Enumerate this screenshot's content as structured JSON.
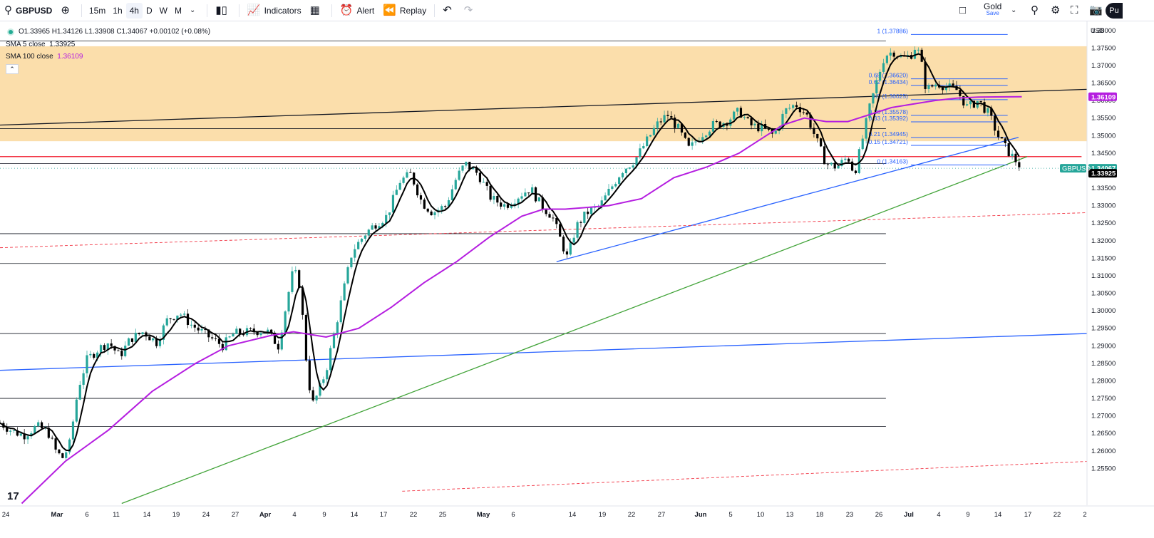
{
  "toolbar": {
    "symbol": "GBPUSD",
    "timeframes": [
      "15m",
      "1h",
      "4h",
      "D",
      "W",
      "M"
    ],
    "active_timeframe": "4h",
    "indicators": "Indicators",
    "alert": "Alert",
    "replay": "Replay",
    "layout_name": "Gold",
    "layout_status": "Save",
    "profile": "Pu"
  },
  "legend": {
    "ohlc": "O1.33965 H1.34126 L1.33908 C1.34067 +0.00102 (+0.08%)",
    "sma5_label": "SMA 5 close",
    "sma5_value": "1.33925",
    "sma100_label": "SMA 100 close",
    "sma100_value": "1.36109"
  },
  "currency": "USD",
  "colors": {
    "up": "#26a69a",
    "down": "#000000",
    "sma5": "#000000",
    "sma100": "#b51ee0",
    "zone": "#fbdeab",
    "fib": "#2962ff",
    "red_line": "#f23645",
    "green_trend": "#43a43a"
  },
  "chart_data": {
    "type": "candlestick",
    "symbol": "GBPUSD",
    "interval": "4h",
    "y_axis_ticks": [
      "1.38000",
      "1.37500",
      "1.37000",
      "1.36500",
      "1.36000",
      "1.35500",
      "1.35000",
      "1.34500",
      "1.34000",
      "1.33500",
      "1.33000",
      "1.32500",
      "1.32000",
      "1.31500",
      "1.31000",
      "1.30500",
      "1.30000",
      "1.29500",
      "1.29000",
      "1.28500",
      "1.28000",
      "1.27500",
      "1.27000",
      "1.26500",
      "1.26000",
      "1.25500"
    ],
    "x_axis_ticks": [
      "24",
      "Mar",
      "6",
      "11",
      "14",
      "19",
      "24",
      "27",
      "Apr",
      "4",
      "9",
      "14",
      "17",
      "22",
      "25",
      "May",
      "6",
      "14",
      "19",
      "22",
      "27",
      "Jun",
      "5",
      "10",
      "13",
      "18",
      "23",
      "26",
      "Jul",
      "4",
      "9",
      "14",
      "17",
      "22",
      "2"
    ],
    "ylim": [
      1.2445,
      1.3826
    ],
    "last_price": "1.34067",
    "last_price_label": "GBPUSD",
    "sma5_last": "1.33925",
    "sma100_last": "1.36109",
    "price_path": [
      [
        0,
        1.268
      ],
      [
        0.012,
        1.2655
      ],
      [
        0.022,
        1.2645
      ],
      [
        0.034,
        1.267
      ],
      [
        0.044,
        1.2655
      ],
      [
        0.052,
        1.2595
      ],
      [
        0.058,
        1.258
      ],
      [
        0.064,
        1.262
      ],
      [
        0.072,
        1.278
      ],
      [
        0.08,
        1.286
      ],
      [
        0.09,
        1.289
      ],
      [
        0.1,
        1.291
      ],
      [
        0.11,
        1.287
      ],
      [
        0.12,
        1.292
      ],
      [
        0.132,
        1.294
      ],
      [
        0.144,
        1.291
      ],
      [
        0.154,
        1.2975
      ],
      [
        0.165,
        1.2995
      ],
      [
        0.176,
        1.296
      ],
      [
        0.19,
        1.293
      ],
      [
        0.205,
        1.29
      ],
      [
        0.215,
        1.2935
      ],
      [
        0.23,
        1.294
      ],
      [
        0.245,
        1.2945
      ],
      [
        0.256,
        1.29
      ],
      [
        0.266,
        1.306
      ],
      [
        0.27,
        1.312
      ],
      [
        0.276,
        1.307
      ],
      [
        0.282,
        1.285
      ],
      [
        0.287,
        1.273
      ],
      [
        0.292,
        1.276
      ],
      [
        0.3,
        1.283
      ],
      [
        0.312,
        1.3
      ],
      [
        0.324,
        1.317
      ],
      [
        0.336,
        1.322
      ],
      [
        0.346,
        1.325
      ],
      [
        0.356,
        1.327
      ],
      [
        0.368,
        1.337
      ],
      [
        0.378,
        1.339
      ],
      [
        0.388,
        1.331
      ],
      [
        0.398,
        1.328
      ],
      [
        0.41,
        1.33
      ],
      [
        0.42,
        1.338
      ],
      [
        0.428,
        1.342
      ],
      [
        0.44,
        1.339
      ],
      [
        0.452,
        1.332
      ],
      [
        0.465,
        1.33
      ],
      [
        0.478,
        1.333
      ],
      [
        0.488,
        1.335
      ],
      [
        0.498,
        1.33
      ],
      [
        0.508,
        1.327
      ],
      [
        0.516,
        1.32
      ],
      [
        0.522,
        1.315
      ],
      [
        0.53,
        1.324
      ],
      [
        0.54,
        1.328
      ],
      [
        0.552,
        1.33
      ],
      [
        0.562,
        1.335
      ],
      [
        0.572,
        1.34
      ],
      [
        0.584,
        1.343
      ],
      [
        0.594,
        1.348
      ],
      [
        0.604,
        1.353
      ],
      [
        0.614,
        1.356
      ],
      [
        0.624,
        1.352
      ],
      [
        0.634,
        1.346
      ],
      [
        0.644,
        1.35
      ],
      [
        0.656,
        1.353
      ],
      [
        0.668,
        1.354
      ],
      [
        0.68,
        1.357
      ],
      [
        0.69,
        1.353
      ],
      [
        0.702,
        1.352
      ],
      [
        0.712,
        1.35
      ],
      [
        0.722,
        1.357
      ],
      [
        0.732,
        1.359
      ],
      [
        0.742,
        1.356
      ],
      [
        0.752,
        1.348
      ],
      [
        0.76,
        1.342
      ],
      [
        0.77,
        1.341
      ],
      [
        0.78,
        1.344
      ],
      [
        0.786,
        1.339
      ],
      [
        0.792,
        1.347
      ],
      [
        0.8,
        1.358
      ],
      [
        0.808,
        1.367
      ],
      [
        0.814,
        1.373
      ],
      [
        0.822,
        1.374
      ],
      [
        0.83,
        1.372
      ],
      [
        0.838,
        1.373
      ],
      [
        0.843,
        1.376
      ],
      [
        0.848,
        1.37
      ],
      [
        0.852,
        1.363
      ],
      [
        0.862,
        1.365
      ],
      [
        0.87,
        1.364
      ],
      [
        0.88,
        1.363
      ],
      [
        0.89,
        1.358
      ],
      [
        0.9,
        1.36
      ],
      [
        0.91,
        1.356
      ],
      [
        0.918,
        1.35
      ],
      [
        0.926,
        1.346
      ],
      [
        0.934,
        1.343
      ],
      [
        0.94,
        1.3407
      ]
    ],
    "sma100_path": [
      [
        0.02,
        1.245
      ],
      [
        0.06,
        1.257
      ],
      [
        0.1,
        1.266
      ],
      [
        0.14,
        1.277
      ],
      [
        0.18,
        1.285
      ],
      [
        0.21,
        1.29
      ],
      [
        0.25,
        1.293
      ],
      [
        0.27,
        1.294
      ],
      [
        0.3,
        1.2925
      ],
      [
        0.33,
        1.295
      ],
      [
        0.36,
        1.301
      ],
      [
        0.39,
        1.308
      ],
      [
        0.42,
        1.314
      ],
      [
        0.45,
        1.321
      ],
      [
        0.48,
        1.327
      ],
      [
        0.5,
        1.329
      ],
      [
        0.52,
        1.329
      ],
      [
        0.54,
        1.3295
      ],
      [
        0.56,
        1.33
      ],
      [
        0.59,
        1.332
      ],
      [
        0.62,
        1.338
      ],
      [
        0.65,
        1.341
      ],
      [
        0.68,
        1.345
      ],
      [
        0.7,
        1.349
      ],
      [
        0.72,
        1.353
      ],
      [
        0.74,
        1.355
      ],
      [
        0.76,
        1.354
      ],
      [
        0.78,
        1.354
      ],
      [
        0.8,
        1.356
      ],
      [
        0.82,
        1.358
      ],
      [
        0.84,
        1.359
      ],
      [
        0.86,
        1.36
      ],
      [
        0.88,
        1.3607
      ],
      [
        0.9,
        1.361
      ],
      [
        0.94,
        1.3611
      ]
    ],
    "horizontal_lines": [
      {
        "price": 1.377,
        "color": "#131722",
        "x_end": 0.815
      },
      {
        "price": 1.352,
        "color": "#131722",
        "x_end": 0.815
      },
      {
        "price": 1.344,
        "color": "#f23645",
        "x_end": 0.995
      },
      {
        "price": 1.342,
        "color": "#131722",
        "x_end": 0.815
      },
      {
        "price": 1.322,
        "color": "#131722",
        "x_end": 0.815
      },
      {
        "price": 1.3135,
        "color": "#131722",
        "x_end": 0.815
      },
      {
        "price": 1.2935,
        "color": "#131722",
        "x_end": 0.815
      },
      {
        "price": 1.275,
        "color": "#131722",
        "x_end": 0.815
      },
      {
        "price": 1.267,
        "color": "#131722",
        "x_end": 0.815
      }
    ],
    "zone": {
      "top": 1.3755,
      "bottom": 1.3484
    },
    "trend_lines": [
      {
        "from": [
          0,
          1.353
        ],
        "to": [
          1.0,
          1.3632
        ],
        "color": "#131722"
      },
      {
        "from": [
          0,
          1.283
        ],
        "to": [
          1.0,
          1.2935
        ],
        "color": "#2962ff"
      },
      {
        "from": [
          0.512,
          1.314
        ],
        "to": [
          0.937,
          1.3495
        ],
        "color": "#2962ff"
      },
      {
        "from": [
          0.112,
          1.245
        ],
        "to": [
          0.945,
          1.344
        ],
        "color": "#43a43a"
      },
      {
        "from": [
          0,
          1.318
        ],
        "to": [
          1.0,
          1.328
        ],
        "color": "#f23645",
        "dashed": true
      },
      {
        "from": [
          0.37,
          1.2485
        ],
        "to": [
          1.0,
          1.257
        ],
        "color": "#f23645",
        "dashed": true
      }
    ],
    "fibonacci": {
      "x_start": 0.838,
      "x_end": 0.927,
      "levels": [
        {
          "label": "1 (1.37886)",
          "price": 1.37886
        },
        {
          "label": "0.68 (1.36620)",
          "price": 1.3662
        },
        {
          "label": "0.62 (1.36434)",
          "price": 1.36434
        },
        {
          "label": "0.5 (1.36025)",
          "price": 1.36025
        },
        {
          "label": "0.38 (1.35578)",
          "price": 1.35578
        },
        {
          "label": "0.33 (1.35392)",
          "price": 1.35392
        },
        {
          "label": "0.21 (1.34945)",
          "price": 1.34945
        },
        {
          "label": "0.15 (1.34721)",
          "price": 1.34721
        },
        {
          "label": "0 (1.34163)",
          "price": 1.34163
        }
      ]
    }
  }
}
